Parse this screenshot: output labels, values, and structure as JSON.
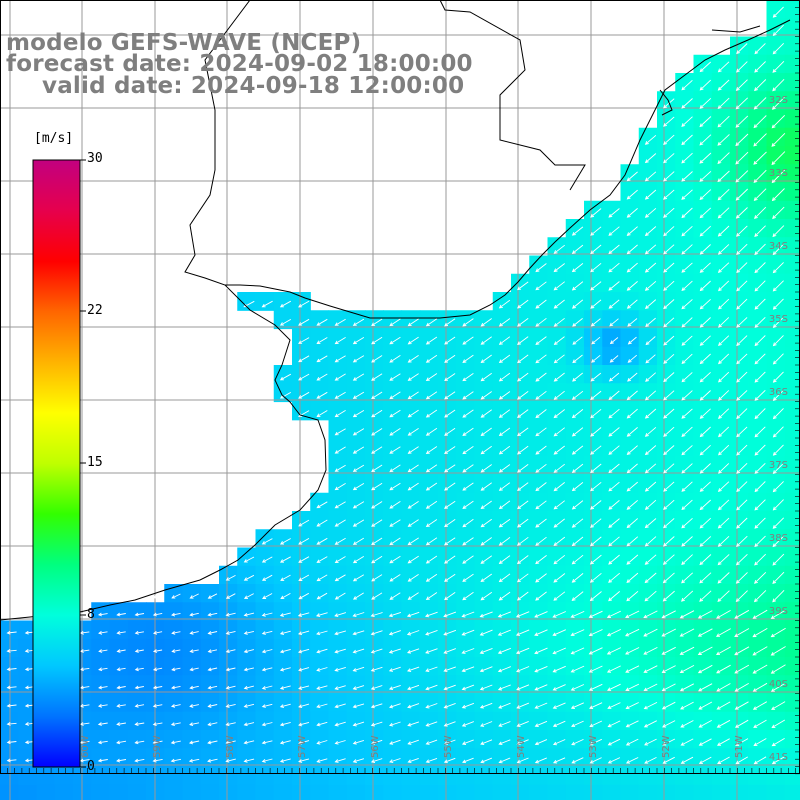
{
  "title": {
    "model": "modelo GEFS-WAVE (NCEP)",
    "forecast": "forecast date: 2024-09-02 18:00:00",
    "valid": "valid date: 2024-09-18 12:00:00"
  },
  "colorbar": {
    "unit": "[m/s]",
    "min": 0,
    "max": 30,
    "ticks": [
      "30",
      "22",
      "15",
      "8",
      "0"
    ],
    "colors": [
      "#0000ff",
      "#0073ff",
      "#00c8ff",
      "#00ffdc",
      "#00ff80",
      "#33ff00",
      "#bfff00",
      "#ffff00",
      "#ffb300",
      "#ff6600",
      "#ff0000",
      "#e6004d",
      "#c20080"
    ]
  },
  "map": {
    "lat_labels": [
      "32S",
      "33S",
      "34S",
      "35S",
      "36S",
      "37S",
      "38S",
      "39S",
      "40S",
      "41S"
    ],
    "lon_labels": [
      "60W",
      "59W",
      "58W",
      "57W",
      "56W",
      "55W",
      "54W",
      "53W",
      "52W",
      "51W"
    ],
    "grid_color": "#999999",
    "vector_color": "#ffffff",
    "land_color": "#ffffff",
    "coast_color": "#000000"
  }
}
